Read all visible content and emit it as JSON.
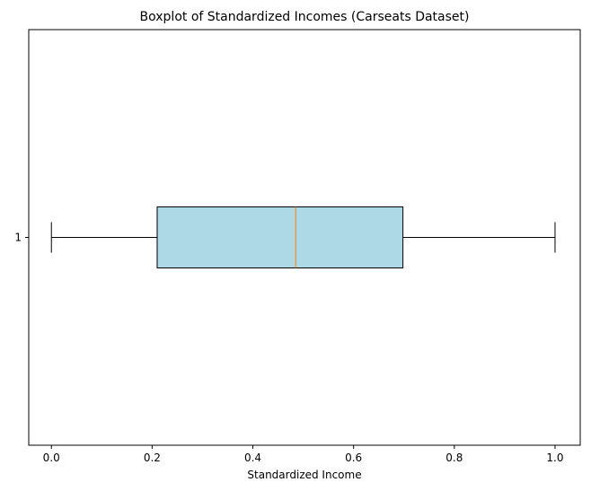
{
  "chart_data": {
    "type": "boxplot",
    "orientation": "horizontal",
    "title": "Boxplot of Standardized Incomes (Carseats Dataset)",
    "xlabel": "Standardized Income",
    "ylabel": "",
    "xlim": [
      -0.045,
      1.05
    ],
    "xticks": [
      0.0,
      0.2,
      0.4,
      0.6,
      0.8,
      1.0
    ],
    "xtick_labels": [
      "0.0",
      "0.2",
      "0.4",
      "0.6",
      "0.8",
      "1.0"
    ],
    "ytick_labels": [
      "1"
    ],
    "grid": false,
    "boxes": [
      {
        "position": 1,
        "whisker_low": 0.0,
        "q1": 0.21,
        "median": 0.485,
        "q3": 0.698,
        "whisker_high": 1.0
      }
    ],
    "colors": {
      "box_fill": "#add8e6",
      "box_edge": "#000000",
      "median": "#ff7f0e"
    }
  }
}
